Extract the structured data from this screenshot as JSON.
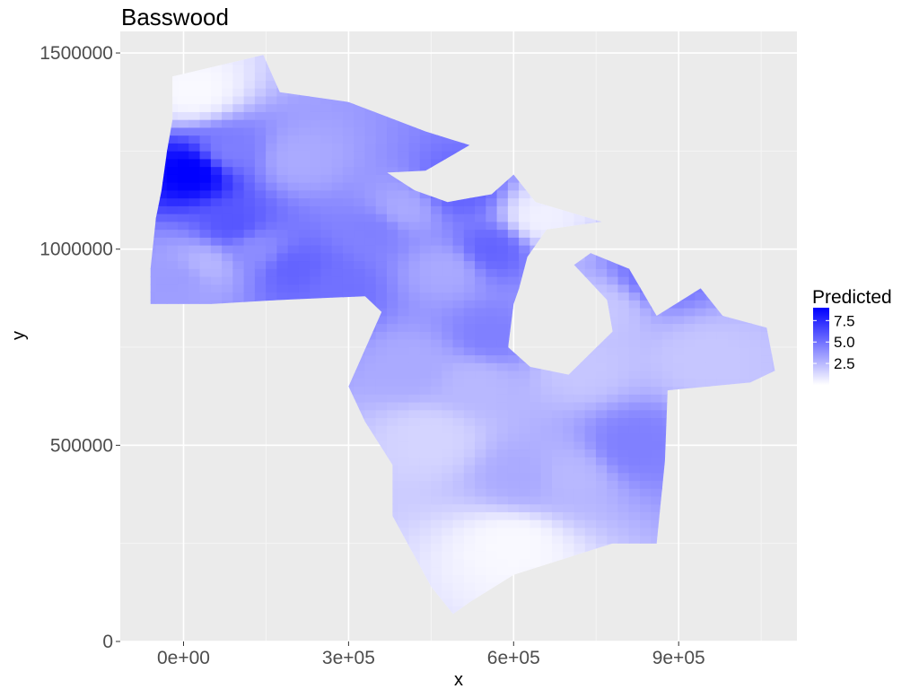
{
  "chart_data": {
    "type": "heatmap",
    "title": "Basswood",
    "xlabel": "x",
    "ylabel": "y",
    "xlim": [
      -115000,
      1115000
    ],
    "ylim": [
      0,
      1555000
    ],
    "x_ticks": [
      {
        "value": 0,
        "label": "0e+00"
      },
      {
        "value": 300000,
        "label": "3e+05"
      },
      {
        "value": 600000,
        "label": "6e+05"
      },
      {
        "value": 900000,
        "label": "9e+05"
      }
    ],
    "y_ticks": [
      {
        "value": 0,
        "label": "0"
      },
      {
        "value": 500000,
        "label": "500000"
      },
      {
        "value": 1000000,
        "label": "1000000"
      },
      {
        "value": 1500000,
        "label": "1500000"
      }
    ],
    "grid": true,
    "legend": {
      "title": "Predicted",
      "placement": "right",
      "min": 0,
      "max": 9,
      "low_color": "#ffffff",
      "high_color": "#0000ff",
      "breaks": [
        {
          "value": 7.5,
          "label": "7.5"
        },
        {
          "value": 5.0,
          "label": "5.0"
        },
        {
          "value": 2.5,
          "label": "2.5"
        }
      ]
    },
    "region_outline": [
      [
        -20000,
        1440000
      ],
      [
        145000,
        1495000
      ],
      [
        175000,
        1400000
      ],
      [
        300000,
        1375000
      ],
      [
        440000,
        1300000
      ],
      [
        520000,
        1265000
      ],
      [
        440000,
        1200000
      ],
      [
        370000,
        1195000
      ],
      [
        420000,
        1150000
      ],
      [
        480000,
        1120000
      ],
      [
        560000,
        1140000
      ],
      [
        600000,
        1190000
      ],
      [
        640000,
        1120000
      ],
      [
        760000,
        1070000
      ],
      [
        660000,
        1050000
      ],
      [
        625000,
        980000
      ],
      [
        610000,
        900000
      ],
      [
        600000,
        860000
      ],
      [
        590000,
        750000
      ],
      [
        630000,
        700000
      ],
      [
        700000,
        680000
      ],
      [
        780000,
        790000
      ],
      [
        770000,
        870000
      ],
      [
        710000,
        960000
      ],
      [
        740000,
        990000
      ],
      [
        810000,
        950000
      ],
      [
        860000,
        830000
      ],
      [
        940000,
        900000
      ],
      [
        980000,
        830000
      ],
      [
        1060000,
        800000
      ],
      [
        1075000,
        690000
      ],
      [
        1030000,
        660000
      ],
      [
        880000,
        640000
      ],
      [
        875000,
        460000
      ],
      [
        860000,
        250000
      ],
      [
        780000,
        250000
      ],
      [
        600000,
        170000
      ],
      [
        520000,
        100000
      ],
      [
        490000,
        70000
      ],
      [
        450000,
        140000
      ],
      [
        380000,
        320000
      ],
      [
        380000,
        450000
      ],
      [
        330000,
        560000
      ],
      [
        300000,
        650000
      ],
      [
        360000,
        840000
      ],
      [
        330000,
        880000
      ],
      [
        170000,
        870000
      ],
      [
        50000,
        860000
      ],
      [
        -60000,
        860000
      ],
      [
        -60000,
        950000
      ],
      [
        -50000,
        1080000
      ],
      [
        -40000,
        1150000
      ],
      [
        -30000,
        1250000
      ],
      [
        -20000,
        1330000
      ]
    ],
    "values": [
      {
        "x": 20000,
        "y": 1200000,
        "v": 9.2
      },
      {
        "x": 80000,
        "y": 1250000,
        "v": 4.5
      },
      {
        "x": 210000,
        "y": 1230000,
        "v": 3.0
      },
      {
        "x": 90000,
        "y": 1060000,
        "v": 6.0
      },
      {
        "x": 130000,
        "y": 1000000,
        "v": 4.0
      },
      {
        "x": 0,
        "y": 930000,
        "v": 3.5
      },
      {
        "x": 40000,
        "y": 960000,
        "v": 2.5
      },
      {
        "x": 200000,
        "y": 950000,
        "v": 5.5
      },
      {
        "x": 280000,
        "y": 900000,
        "v": 5.0
      },
      {
        "x": 350000,
        "y": 1050000,
        "v": 4.5
      },
      {
        "x": 500000,
        "y": 1150000,
        "v": 5.5
      },
      {
        "x": 400000,
        "y": 1100000,
        "v": 3.0
      },
      {
        "x": 560000,
        "y": 1000000,
        "v": 5.5
      },
      {
        "x": 480000,
        "y": 950000,
        "v": 3.0
      },
      {
        "x": 560000,
        "y": 780000,
        "v": 4.5
      },
      {
        "x": 420000,
        "y": 700000,
        "v": 3.0
      },
      {
        "x": 530000,
        "y": 660000,
        "v": 2.5
      },
      {
        "x": 450000,
        "y": 520000,
        "v": 1.5
      },
      {
        "x": 620000,
        "y": 420000,
        "v": 3.0
      },
      {
        "x": 700000,
        "y": 420000,
        "v": 2.5
      },
      {
        "x": 820000,
        "y": 500000,
        "v": 4.5
      },
      {
        "x": 720000,
        "y": 700000,
        "v": 2.0
      },
      {
        "x": 860000,
        "y": 940000,
        "v": 5.0
      },
      {
        "x": 950000,
        "y": 720000,
        "v": 2.0
      },
      {
        "x": 760000,
        "y": 850000,
        "v": 2.0
      },
      {
        "x": 600000,
        "y": 250000,
        "v": 0.2
      },
      {
        "x": 20000,
        "y": 1400000,
        "v": 0.2
      },
      {
        "x": 650000,
        "y": 1080000,
        "v": 0.5
      }
    ]
  }
}
